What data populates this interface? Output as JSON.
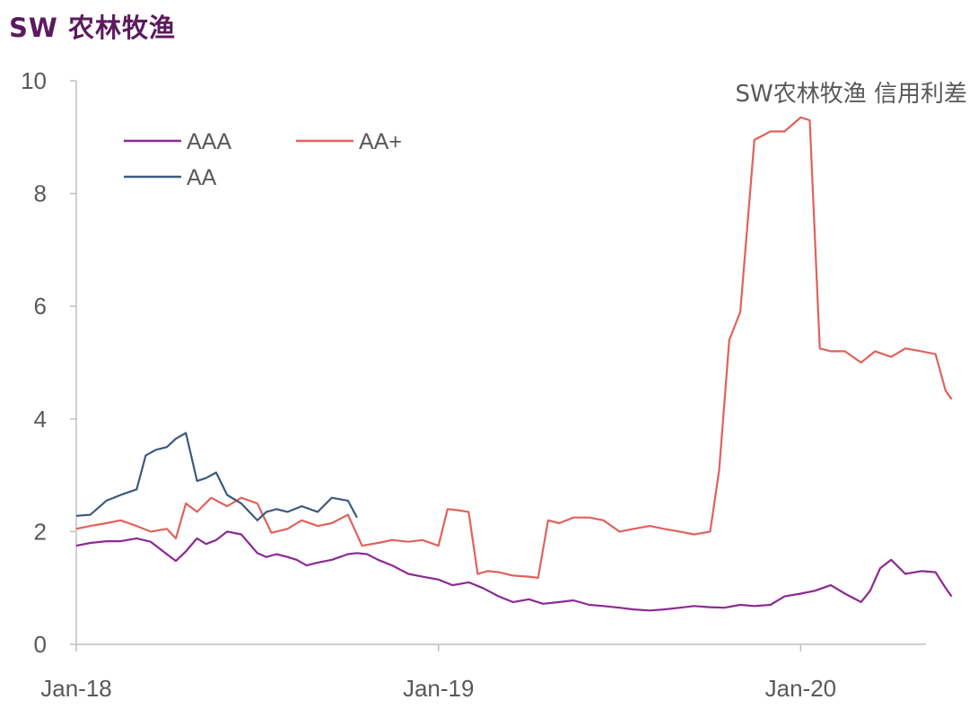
{
  "page_title": "SW 农林牧渔",
  "chart_data": {
    "type": "line",
    "title": "SW农林牧渔 信用利差",
    "xlabel": "",
    "ylabel": "",
    "ylim": [
      0,
      10
    ],
    "yticks": [
      "0",
      "2",
      "4",
      "6",
      "8",
      "10"
    ],
    "xticks": [
      "Jan-18",
      "Jan-19",
      "Jan-20"
    ],
    "x_range": [
      "2018-01",
      "2020-05"
    ],
    "grid": false,
    "legend_position": "top-left",
    "series": [
      {
        "name": "AAA",
        "color": "#8b2a92",
        "x": [
          "2018-01-01",
          "2018-01-15",
          "2018-02-01",
          "2018-02-15",
          "2018-03-01",
          "2018-03-15",
          "2018-04-01",
          "2018-04-10",
          "2018-04-20",
          "2018-05-01",
          "2018-05-10",
          "2018-05-20",
          "2018-06-01",
          "2018-06-15",
          "2018-07-01",
          "2018-07-10",
          "2018-07-20",
          "2018-08-01",
          "2018-08-10",
          "2018-08-20",
          "2018-09-01",
          "2018-09-15",
          "2018-10-01",
          "2018-10-10",
          "2018-10-20",
          "2018-11-01",
          "2018-11-15",
          "2018-12-01",
          "2018-12-15",
          "2019-01-01",
          "2019-01-15",
          "2019-02-01",
          "2019-02-15",
          "2019-03-01",
          "2019-03-15",
          "2019-04-01",
          "2019-04-15",
          "2019-05-01",
          "2019-05-15",
          "2019-06-01",
          "2019-06-15",
          "2019-07-01",
          "2019-07-15",
          "2019-08-01",
          "2019-08-15",
          "2019-09-01",
          "2019-09-15",
          "2019-10-01",
          "2019-10-15",
          "2019-11-01",
          "2019-11-15",
          "2019-12-01",
          "2019-12-15",
          "2020-01-01",
          "2020-01-15",
          "2020-02-01",
          "2020-02-15",
          "2020-03-01",
          "2020-03-10",
          "2020-03-20",
          "2020-04-01",
          "2020-04-15",
          "2020-05-01",
          "2020-05-15",
          "2020-05-25",
          "2020-06-01"
        ],
        "y": [
          1.75,
          1.8,
          1.83,
          1.83,
          1.88,
          1.82,
          1.6,
          1.48,
          1.65,
          1.88,
          1.78,
          1.85,
          2.0,
          1.95,
          1.62,
          1.55,
          1.6,
          1.55,
          1.5,
          1.4,
          1.45,
          1.5,
          1.6,
          1.62,
          1.6,
          1.5,
          1.4,
          1.25,
          1.2,
          1.15,
          1.05,
          1.1,
          1.0,
          0.85,
          0.75,
          0.8,
          0.72,
          0.75,
          0.78,
          0.7,
          0.68,
          0.65,
          0.62,
          0.6,
          0.62,
          0.65,
          0.68,
          0.66,
          0.65,
          0.7,
          0.68,
          0.7,
          0.85,
          0.9,
          0.95,
          1.05,
          0.9,
          0.75,
          0.95,
          1.35,
          1.5,
          1.25,
          1.3,
          1.28,
          1.0,
          0.85
        ]
      },
      {
        "name": "AA+",
        "color": "#e0625a",
        "x": [
          "2018-01-01",
          "2018-01-15",
          "2018-02-01",
          "2018-02-15",
          "2018-03-01",
          "2018-03-15",
          "2018-04-01",
          "2018-04-10",
          "2018-04-20",
          "2018-05-01",
          "2018-05-15",
          "2018-06-01",
          "2018-06-15",
          "2018-07-01",
          "2018-07-15",
          "2018-08-01",
          "2018-08-15",
          "2018-09-01",
          "2018-09-15",
          "2018-10-01",
          "2018-10-15",
          "2018-11-01",
          "2018-11-15",
          "2018-12-01",
          "2018-12-15",
          "2019-01-01",
          "2019-01-10",
          "2019-01-20",
          "2019-02-01",
          "2019-02-10",
          "2019-02-20",
          "2019-03-01",
          "2019-03-15",
          "2019-04-01",
          "2019-04-10",
          "2019-04-20",
          "2019-05-01",
          "2019-05-15",
          "2019-06-01",
          "2019-06-15",
          "2019-07-01",
          "2019-07-15",
          "2019-08-01",
          "2019-08-15",
          "2019-09-01",
          "2019-09-15",
          "2019-10-01",
          "2019-10-10",
          "2019-10-20",
          "2019-11-01",
          "2019-11-15",
          "2019-12-01",
          "2019-12-15",
          "2020-01-01",
          "2020-01-10",
          "2020-01-20",
          "2020-02-01",
          "2020-02-15",
          "2020-03-01",
          "2020-03-15",
          "2020-04-01",
          "2020-04-15",
          "2020-05-01",
          "2020-05-15",
          "2020-05-25",
          "2020-06-01"
        ],
        "y": [
          2.05,
          2.1,
          2.15,
          2.2,
          2.1,
          2.0,
          2.05,
          1.88,
          2.5,
          2.35,
          2.6,
          2.45,
          2.6,
          2.5,
          1.98,
          2.05,
          2.2,
          2.1,
          2.15,
          2.3,
          1.75,
          1.8,
          1.85,
          1.82,
          1.85,
          1.75,
          2.4,
          2.38,
          2.35,
          1.25,
          1.3,
          1.28,
          1.22,
          1.2,
          1.18,
          2.2,
          2.15,
          2.25,
          2.25,
          2.2,
          2.0,
          2.05,
          2.1,
          2.05,
          2.0,
          1.95,
          2.0,
          3.1,
          5.4,
          5.9,
          8.95,
          9.1,
          9.1,
          9.35,
          9.3,
          5.25,
          5.2,
          5.2,
          5.0,
          5.2,
          5.1,
          5.25,
          5.2,
          5.15,
          4.5,
          4.35
        ]
      },
      {
        "name": "AA",
        "color": "#3d5a80",
        "x": [
          "2018-01-01",
          "2018-01-15",
          "2018-02-01",
          "2018-02-15",
          "2018-03-01",
          "2018-03-10",
          "2018-03-20",
          "2018-04-01",
          "2018-04-10",
          "2018-04-20",
          "2018-05-01",
          "2018-05-10",
          "2018-05-20",
          "2018-06-01",
          "2018-06-15",
          "2018-07-01",
          "2018-07-10",
          "2018-07-20",
          "2018-08-01",
          "2018-08-15",
          "2018-09-01",
          "2018-09-15",
          "2018-10-01",
          "2018-10-10"
        ],
        "y": [
          2.28,
          2.3,
          2.55,
          2.65,
          2.75,
          3.35,
          3.45,
          3.5,
          3.65,
          3.75,
          2.9,
          2.95,
          3.05,
          2.65,
          2.5,
          2.2,
          2.35,
          2.4,
          2.35,
          2.45,
          2.35,
          2.6,
          2.55,
          2.25
        ]
      }
    ]
  }
}
